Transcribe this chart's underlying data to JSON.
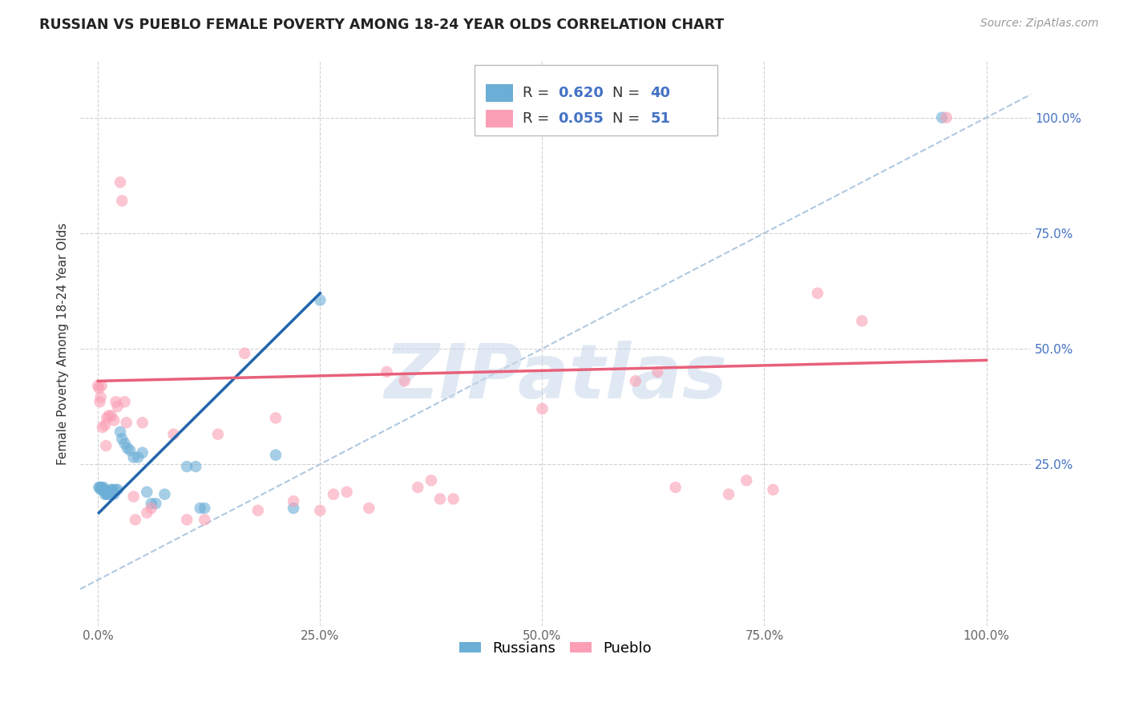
{
  "title": "RUSSIAN VS PUEBLO FEMALE POVERTY AMONG 18-24 YEAR OLDS CORRELATION CHART",
  "source": "Source: ZipAtlas.com",
  "ylabel": "Female Poverty Among 18-24 Year Olds",
  "background_color": "#ffffff",
  "watermark": "ZIPatlas",
  "russian_color": "#6baed6",
  "pueblo_color": "#fa9fb5",
  "russian_line_color": "#2166ac",
  "pueblo_line_color": "#e8607a",
  "diagonal_color": "#b0c8e0",
  "tick_color_y": "#4472c4",
  "tick_color_x": "#666666",
  "russian_points": [
    [
      0.001,
      0.2
    ],
    [
      0.002,
      0.2
    ],
    [
      0.003,
      0.195
    ],
    [
      0.004,
      0.2
    ],
    [
      0.005,
      0.195
    ],
    [
      0.006,
      0.2
    ],
    [
      0.007,
      0.195
    ],
    [
      0.008,
      0.185
    ],
    [
      0.009,
      0.185
    ],
    [
      0.01,
      0.19
    ],
    [
      0.011,
      0.185
    ],
    [
      0.012,
      0.19
    ],
    [
      0.013,
      0.185
    ],
    [
      0.014,
      0.19
    ],
    [
      0.015,
      0.195
    ],
    [
      0.016,
      0.195
    ],
    [
      0.017,
      0.19
    ],
    [
      0.018,
      0.185
    ],
    [
      0.02,
      0.195
    ],
    [
      0.022,
      0.195
    ],
    [
      0.025,
      0.32
    ],
    [
      0.027,
      0.305
    ],
    [
      0.03,
      0.295
    ],
    [
      0.033,
      0.285
    ],
    [
      0.036,
      0.28
    ],
    [
      0.04,
      0.265
    ],
    [
      0.045,
      0.265
    ],
    [
      0.05,
      0.275
    ],
    [
      0.055,
      0.19
    ],
    [
      0.06,
      0.165
    ],
    [
      0.065,
      0.165
    ],
    [
      0.075,
      0.185
    ],
    [
      0.1,
      0.245
    ],
    [
      0.11,
      0.245
    ],
    [
      0.115,
      0.155
    ],
    [
      0.12,
      0.155
    ],
    [
      0.2,
      0.27
    ],
    [
      0.22,
      0.155
    ],
    [
      0.25,
      0.605
    ],
    [
      0.95,
      1.0
    ]
  ],
  "pueblo_points": [
    [
      0.0,
      0.42
    ],
    [
      0.001,
      0.415
    ],
    [
      0.002,
      0.385
    ],
    [
      0.003,
      0.395
    ],
    [
      0.004,
      0.42
    ],
    [
      0.005,
      0.33
    ],
    [
      0.008,
      0.335
    ],
    [
      0.009,
      0.29
    ],
    [
      0.01,
      0.35
    ],
    [
      0.012,
      0.355
    ],
    [
      0.015,
      0.355
    ],
    [
      0.018,
      0.345
    ],
    [
      0.02,
      0.385
    ],
    [
      0.022,
      0.375
    ],
    [
      0.025,
      0.86
    ],
    [
      0.027,
      0.82
    ],
    [
      0.03,
      0.385
    ],
    [
      0.032,
      0.34
    ],
    [
      0.04,
      0.18
    ],
    [
      0.042,
      0.13
    ],
    [
      0.05,
      0.34
    ],
    [
      0.055,
      0.145
    ],
    [
      0.06,
      0.155
    ],
    [
      0.085,
      0.315
    ],
    [
      0.1,
      0.13
    ],
    [
      0.12,
      0.13
    ],
    [
      0.135,
      0.315
    ],
    [
      0.165,
      0.49
    ],
    [
      0.18,
      0.15
    ],
    [
      0.2,
      0.35
    ],
    [
      0.22,
      0.17
    ],
    [
      0.25,
      0.15
    ],
    [
      0.265,
      0.185
    ],
    [
      0.28,
      0.19
    ],
    [
      0.305,
      0.155
    ],
    [
      0.325,
      0.45
    ],
    [
      0.345,
      0.43
    ],
    [
      0.36,
      0.2
    ],
    [
      0.375,
      0.215
    ],
    [
      0.385,
      0.175
    ],
    [
      0.4,
      0.175
    ],
    [
      0.5,
      0.37
    ],
    [
      0.605,
      0.43
    ],
    [
      0.63,
      0.45
    ],
    [
      0.65,
      0.2
    ],
    [
      0.71,
      0.185
    ],
    [
      0.73,
      0.215
    ],
    [
      0.76,
      0.195
    ],
    [
      0.81,
      0.62
    ],
    [
      0.86,
      0.56
    ],
    [
      0.955,
      1.0
    ]
  ],
  "xlim": [
    -0.02,
    1.05
  ],
  "ylim": [
    -0.1,
    1.12
  ],
  "xticks": [
    0.0,
    0.25,
    0.5,
    0.75,
    1.0
  ],
  "xticklabels": [
    "0.0%",
    "25.0%",
    "50.0%",
    "75.0%",
    "100.0%"
  ],
  "yticks": [
    0.25,
    0.5,
    0.75,
    1.0
  ],
  "yticklabels": [
    "25.0%",
    "50.0%",
    "75.0%",
    "100.0%"
  ],
  "russian_line_x": [
    0.001,
    0.25
  ],
  "russian_line_y": [
    0.145,
    0.62
  ],
  "pueblo_line_x": [
    0.0,
    1.0
  ],
  "pueblo_line_y": [
    0.43,
    0.475
  ]
}
